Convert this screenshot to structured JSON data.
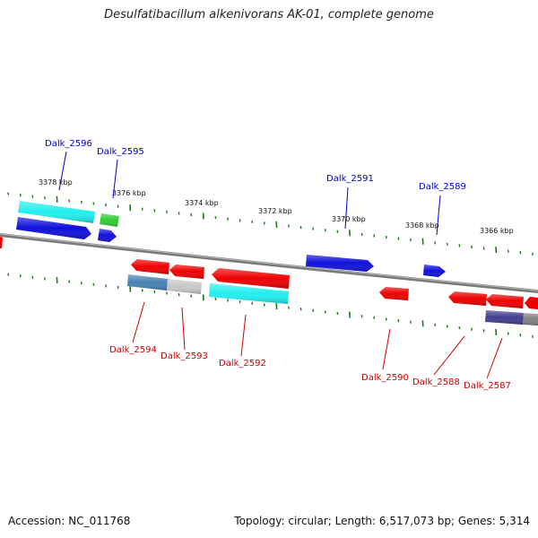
{
  "title": "Desulfatibacillum alkenivorans AK-01, complete genome",
  "footer": {
    "accession": "Accession: NC_011768",
    "summary": "Topology: circular; Length: 6,517,073 bp; Genes: 5,314"
  },
  "colors": {
    "forward_label": "#0000cc",
    "reverse_label": "#cc0000",
    "tick": "#1a7a1a",
    "backbone": "#808080",
    "red": "#ee0000",
    "blue": "#1010dd",
    "cyan": "#22eeee",
    "green": "#33cc33",
    "steelblue": "#4682b4",
    "lightgray": "#c8c8c8",
    "slateblue": "#3f3f90",
    "darkgray": "#808080"
  },
  "kbp_labels": [
    "3378 kbp",
    "3376 kbp",
    "3374 kbp",
    "3372 kbp",
    "3370 kbp",
    "3368 kbp",
    "3366 kbp"
  ],
  "gene_labels": {
    "forward": [
      "Dalk_2596",
      "Dalk_2595",
      "Dalk_2591",
      "Dalk_2589"
    ],
    "reverse": [
      "Dalk_2594",
      "Dalk_2593",
      "Dalk_2592",
      "Dalk_2590",
      "Dalk_2588",
      "Dalk_2587"
    ]
  }
}
